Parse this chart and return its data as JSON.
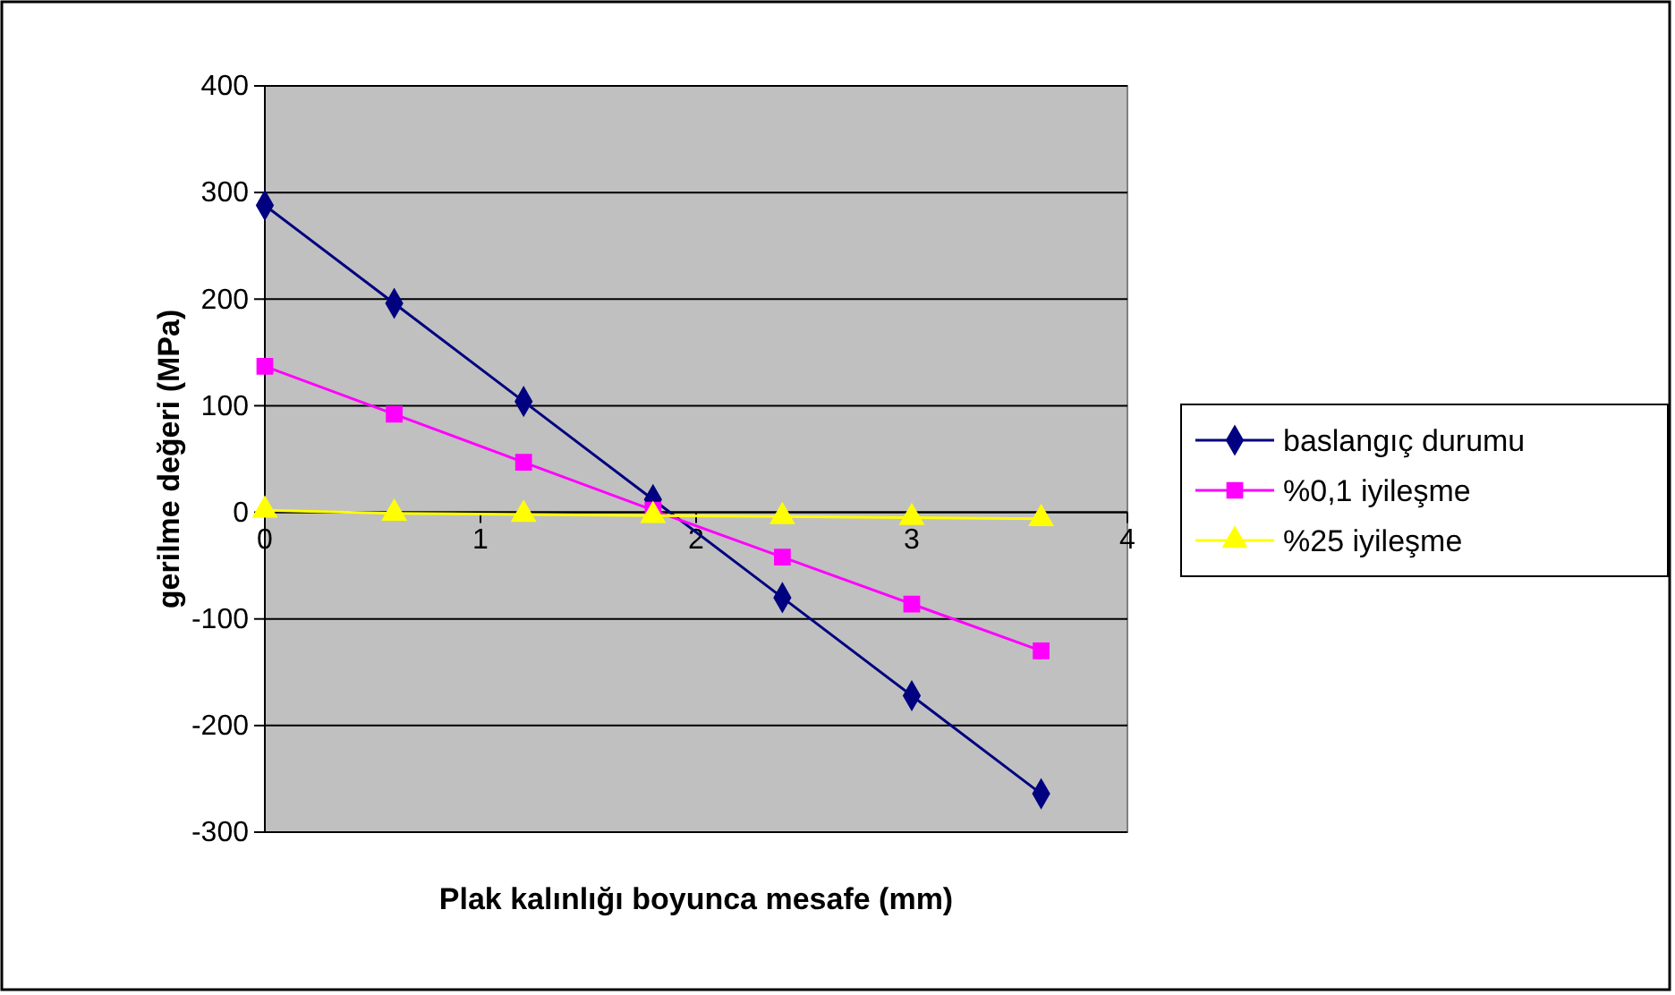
{
  "chart_data": {
    "type": "line",
    "xlabel": "Plak kalınlığı boyunca mesafe (mm)",
    "ylabel": "gerilme değeri (MPa)",
    "xlim": [
      0,
      4
    ],
    "xticks": [
      0,
      1,
      2,
      3,
      4
    ],
    "ylim": [
      -300,
      400
    ],
    "yticks": [
      -300,
      -200,
      -100,
      0,
      100,
      200,
      300,
      400
    ],
    "grid": "y",
    "legend": "right",
    "x": [
      0,
      0.6,
      1.2,
      1.8,
      2.4,
      3.0,
      3.6
    ],
    "series": [
      {
        "name": "baslangıç durumu",
        "color": "#000080",
        "marker": "diamond",
        "values": [
          288,
          196,
          104,
          12,
          -80,
          -172,
          -264
        ]
      },
      {
        "name": "%0,1 iyileşme",
        "color": "#ff00ff",
        "marker": "square",
        "values": [
          137,
          92,
          47,
          2,
          -42,
          -86,
          -130
        ]
      },
      {
        "name": "%25 iyileşme",
        "color": "#ffff00",
        "marker": "triangle",
        "values": [
          2,
          -1,
          -2,
          -3,
          -4,
          -5,
          -6
        ]
      }
    ]
  }
}
